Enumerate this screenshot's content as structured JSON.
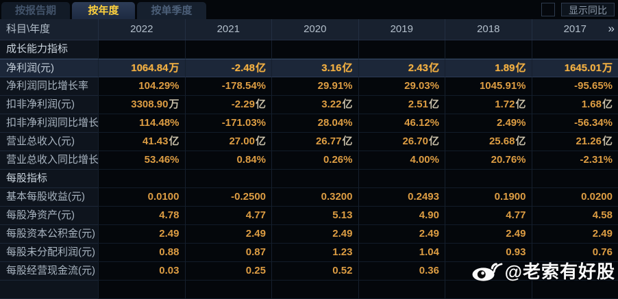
{
  "tabs": [
    {
      "label": "按报告期",
      "active": false
    },
    {
      "label": "按年度",
      "active": true
    },
    {
      "label": "按单季度",
      "active": false
    }
  ],
  "controls": {
    "show_yoy_label": "显示同比",
    "checkbox_checked": false
  },
  "table": {
    "corner_label": "科目\\年度",
    "years": [
      "2022",
      "2021",
      "2020",
      "2019",
      "2018",
      "2017"
    ],
    "more_columns_icon": "»",
    "rows": [
      {
        "type": "section",
        "label": "成长能力指标"
      },
      {
        "type": "data",
        "highlight": true,
        "label": "净利润(元)",
        "values": [
          "1064.84万",
          "-2.48亿",
          "3.16亿",
          "2.43亿",
          "1.89亿",
          "1645.01万"
        ]
      },
      {
        "type": "data",
        "label": "净利润同比增长率",
        "values": [
          "104.29%",
          "-178.54%",
          "29.91%",
          "29.03%",
          "1045.91%",
          "-95.65%"
        ]
      },
      {
        "type": "data",
        "label": "扣非净利润(元)",
        "values": [
          "3308.90万",
          "-2.29亿",
          "3.22亿",
          "2.51亿",
          "1.72亿",
          "1.68亿"
        ]
      },
      {
        "type": "data",
        "label": "扣非净利润同比增长率",
        "values": [
          "114.48%",
          "-171.03%",
          "28.04%",
          "46.12%",
          "2.49%",
          "-56.34%"
        ]
      },
      {
        "type": "data",
        "label": "营业总收入(元)",
        "values": [
          "41.43亿",
          "27.00亿",
          "26.77亿",
          "26.70亿",
          "25.68亿",
          "21.26亿"
        ]
      },
      {
        "type": "data",
        "label": "营业总收入同比增长率",
        "values": [
          "53.46%",
          "0.84%",
          "0.26%",
          "4.00%",
          "20.76%",
          "-2.31%"
        ]
      },
      {
        "type": "section",
        "label": "每股指标"
      },
      {
        "type": "data",
        "label": "基本每股收益(元)",
        "values": [
          "0.0100",
          "-0.2500",
          "0.3200",
          "0.2493",
          "0.1900",
          "0.0200"
        ]
      },
      {
        "type": "data",
        "label": "每股净资产(元)",
        "values": [
          "4.78",
          "4.77",
          "5.13",
          "4.90",
          "4.77",
          "4.58"
        ]
      },
      {
        "type": "data",
        "label": "每股资本公积金(元)",
        "values": [
          "2.49",
          "2.49",
          "2.49",
          "2.49",
          "2.49",
          "2.49"
        ]
      },
      {
        "type": "data",
        "label": "每股未分配利润(元)",
        "values": [
          "0.88",
          "0.87",
          "1.23",
          "1.04",
          "0.93",
          "0.76"
        ]
      },
      {
        "type": "data",
        "label": "每股经营现金流(元)",
        "values": [
          "0.03",
          "0.25",
          "0.52",
          "0.36",
          "",
          ""
        ]
      },
      {
        "type": "filler",
        "label": ""
      }
    ]
  },
  "watermark": {
    "icon": "weibo-logo",
    "text": "@老索有好股"
  },
  "colors": {
    "value_gold": "#dd9d43",
    "highlight_gold": "#f3b042",
    "active_tab_text": "#ffd23e",
    "header_bg": "#18212f",
    "highlight_row_bg": "#1c2739"
  }
}
